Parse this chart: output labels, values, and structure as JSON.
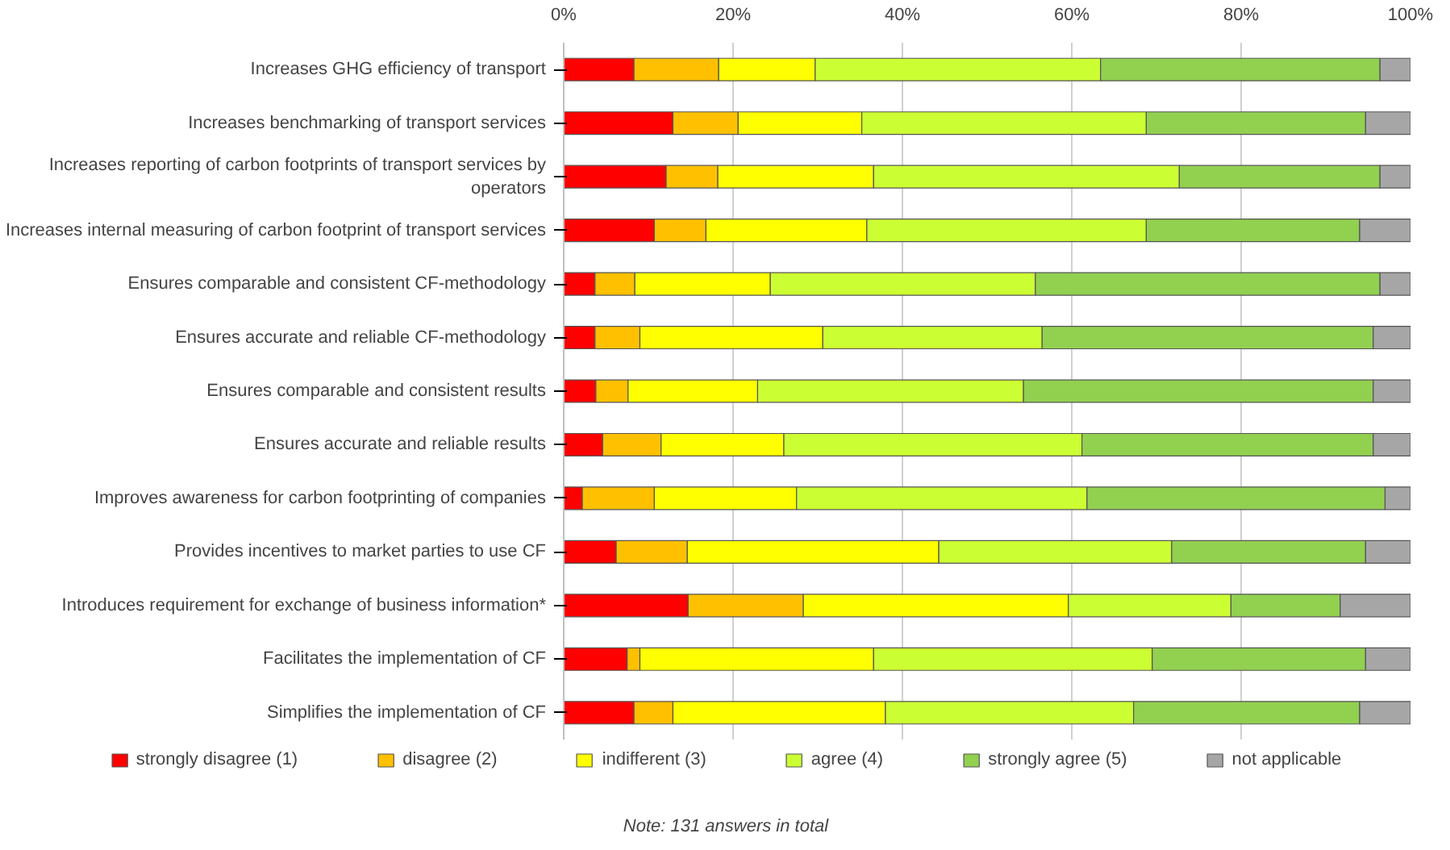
{
  "chart_data": {
    "type": "bar",
    "orientation": "horizontal",
    "stacked": true,
    "categories": [
      "Increases GHG efficiency of transport",
      "Increases benchmarking of transport services",
      "Increases reporting of carbon footprints of transport services by operators",
      "Increases internal measuring of carbon footprint of transport services",
      "Ensures comparable and consistent CF-methodology",
      "Ensures accurate and reliable CF-methodology",
      "Ensures comparable and consistent results",
      "Ensures accurate and reliable results",
      "Improves awareness for carbon footprinting of companies",
      "Provides incentives to market parties to use CF",
      "Introduces requirement for exchange of business information*",
      "Facilitates the implementation of CF",
      "Simplifies the implementation of CF"
    ],
    "series": [
      {
        "name": "strongly disagree (1)",
        "color": "#ff0000",
        "values": [
          8.3,
          12.9,
          12.1,
          10.7,
          3.7,
          3.7,
          3.8,
          4.6,
          2.2,
          6.2,
          14.7,
          7.5,
          8.3
        ]
      },
      {
        "name": "disagree (2)",
        "color": "#ffc000",
        "values": [
          10.0,
          7.7,
          6.1,
          6.1,
          4.7,
          5.3,
          3.8,
          6.9,
          8.5,
          8.4,
          13.6,
          1.5,
          4.6
        ]
      },
      {
        "name": "indifferent (3)",
        "color": "#ffff00",
        "values": [
          11.4,
          14.6,
          18.4,
          19.0,
          16.0,
          21.6,
          15.3,
          14.5,
          16.8,
          29.7,
          31.3,
          27.6,
          25.1
        ]
      },
      {
        "name": "agree (4)",
        "color": "#ccff33",
        "values": [
          33.7,
          33.6,
          36.1,
          33.0,
          31.3,
          25.9,
          31.4,
          35.2,
          34.3,
          27.5,
          19.2,
          32.9,
          29.3
        ]
      },
      {
        "name": "strongly agree (5)",
        "color": "#92d050",
        "values": [
          33.0,
          25.9,
          23.7,
          25.2,
          40.7,
          39.1,
          41.3,
          34.4,
          35.2,
          22.9,
          12.9,
          25.2,
          26.7
        ]
      },
      {
        "name": "not applicable",
        "color": "#a6a6a6",
        "values": [
          3.6,
          5.3,
          3.6,
          6.0,
          3.6,
          4.4,
          4.4,
          4.4,
          3.0,
          5.3,
          8.3,
          5.3,
          6.0
        ]
      }
    ],
    "xlim": [
      0,
      100
    ],
    "xticks": [
      {
        "value": 0,
        "label": "0%"
      },
      {
        "value": 20,
        "label": "20%"
      },
      {
        "value": 40,
        "label": "40%"
      },
      {
        "value": 60,
        "label": "60%"
      },
      {
        "value": 80,
        "label": "80%"
      },
      {
        "value": 100,
        "label": "100%"
      }
    ],
    "grid": "x",
    "legend": "bottom",
    "annotations": [
      "Note: 131 answers in total"
    ]
  }
}
